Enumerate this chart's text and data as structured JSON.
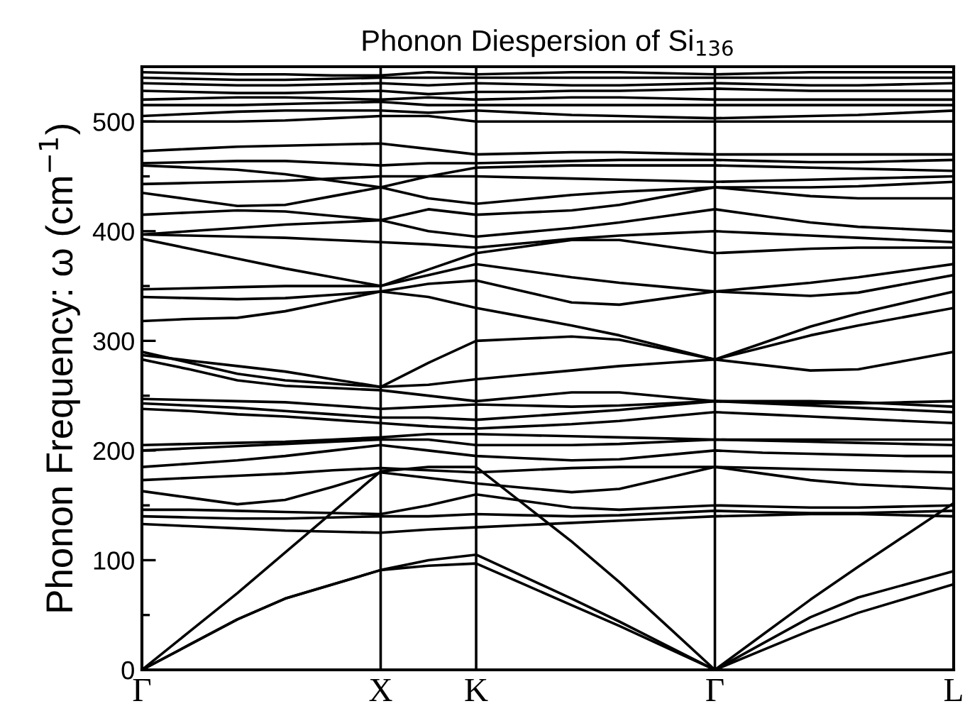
{
  "chart_data": {
    "type": "line",
    "title": "Phonon Diespersion of Si$_{136}$",
    "ylabel": "Phonon Frequency: ω (cm$^{−1}$)",
    "categories": [
      "Γ",
      null,
      null,
      null,
      null,
      "X",
      null,
      "K",
      null,
      null,
      null,
      null,
      "Γ",
      null,
      null,
      null,
      null,
      "L"
    ],
    "ylim": [
      0,
      550
    ],
    "yticks": [
      0,
      {
        "value": 50,
        "label": null
      },
      100,
      {
        "value": 150,
        "label": null
      },
      200,
      {
        "value": 250,
        "label": null
      },
      300,
      {
        "value": 350,
        "label": null
      },
      400,
      {
        "value": 450,
        "label": null
      },
      500
    ],
    "grid": "x",
    "marker": "none",
    "line_style": "solid",
    "series": [
      {
        "color": "#000000",
        "values": [
          0,
          23,
          46,
          65,
          78,
          91,
          95,
          97,
          78,
          59,
          40,
          20,
          0,
          18,
          36,
          52,
          65,
          78
        ]
      },
      {
        "color": "#000000",
        "values": [
          0,
          23,
          46,
          65,
          78,
          91,
          100,
          105,
          85,
          65,
          44,
          22,
          0,
          24,
          48,
          66,
          78,
          90
        ]
      },
      {
        "color": "#000000",
        "values": [
          0,
          35,
          70,
          107,
          144,
          181,
          185,
          185,
          151,
          117,
          80,
          40,
          0,
          32,
          64,
          94,
          123,
          152
        ]
      },
      {
        "color": "#000000",
        "values": [
          133,
          131,
          129,
          127,
          126,
          125,
          128,
          130,
          132,
          134,
          136,
          138,
          140,
          141,
          142,
          142,
          141,
          140
        ]
      },
      {
        "color": "#000000",
        "values": [
          140,
          139,
          138,
          138,
          139,
          140,
          140,
          142,
          141,
          140,
          141,
          143,
          145,
          144,
          143,
          143,
          144,
          145
        ]
      },
      {
        "color": "#000000",
        "values": [
          146,
          146,
          145,
          144,
          143,
          142,
          150,
          160,
          154,
          148,
          146,
          148,
          150,
          149,
          148,
          148,
          149,
          150
        ]
      },
      {
        "color": "#000000",
        "values": [
          163,
          157,
          151,
          155,
          167,
          180,
          175,
          170,
          166,
          162,
          165,
          175,
          185,
          179,
          173,
          169,
          167,
          165
        ]
      },
      {
        "color": "#000000",
        "values": [
          173,
          175,
          177,
          179,
          182,
          184,
          182,
          180,
          182,
          184,
          185,
          185,
          185,
          184,
          183,
          182,
          181,
          180
        ]
      },
      {
        "color": "#000000",
        "values": [
          185,
          188,
          191,
          195,
          200,
          205,
          200,
          195,
          193,
          191,
          192,
          196,
          200,
          198,
          197,
          196,
          195,
          195
        ]
      },
      {
        "color": "#000000",
        "values": [
          200,
          202,
          204,
          206,
          208,
          210,
          210,
          205,
          205,
          205,
          206,
          208,
          210,
          209,
          208,
          207,
          206,
          205
        ]
      },
      {
        "color": "#000000",
        "values": [
          205,
          206,
          207,
          208,
          210,
          212,
          215,
          215,
          214,
          213,
          212,
          211,
          210,
          210,
          210,
          210,
          210,
          210
        ]
      },
      {
        "color": "#000000",
        "values": [
          238,
          236,
          233,
          231,
          228,
          225,
          222,
          220,
          222,
          224,
          227,
          231,
          235,
          233,
          231,
          229,
          227,
          225
        ]
      },
      {
        "color": "#000000",
        "values": [
          243,
          241,
          239,
          236,
          233,
          230,
          230,
          228,
          231,
          234,
          237,
          241,
          245,
          243,
          241,
          239,
          237,
          235
        ]
      },
      {
        "color": "#000000",
        "values": [
          247,
          246,
          245,
          244,
          241,
          238,
          240,
          242,
          241,
          240,
          241,
          243,
          245,
          245,
          245,
          244,
          242,
          240
        ]
      },
      {
        "color": "#000000",
        "values": [
          283,
          274,
          264,
          259,
          257,
          255,
          250,
          245,
          249,
          253,
          253,
          249,
          245,
          244,
          243,
          243,
          244,
          245
        ]
      },
      {
        "color": "#000000",
        "values": [
          287,
          282,
          277,
          272,
          265,
          258,
          260,
          265,
          269,
          273,
          277,
          280,
          283,
          278,
          273,
          274,
          282,
          290
        ]
      },
      {
        "color": "#000000",
        "values": [
          290,
          280,
          270,
          264,
          261,
          258,
          280,
          300,
          302,
          304,
          301,
          292,
          283,
          294,
          305,
          314,
          322,
          330
        ]
      },
      {
        "color": "#000000",
        "values": [
          318,
          320,
          321,
          327,
          336,
          345,
          340,
          330,
          322,
          314,
          305,
          294,
          283,
          298,
          313,
          325,
          335,
          345
        ]
      },
      {
        "color": "#000000",
        "values": [
          340,
          339,
          338,
          339,
          342,
          345,
          352,
          355,
          345,
          335,
          333,
          339,
          345,
          343,
          341,
          344,
          352,
          360
        ]
      },
      {
        "color": "#000000",
        "values": [
          347,
          348,
          349,
          350,
          350,
          350,
          360,
          370,
          364,
          358,
          353,
          349,
          345,
          349,
          353,
          358,
          364,
          370
        ]
      },
      {
        "color": "#000000",
        "values": [
          393,
          384,
          375,
          366,
          358,
          350,
          365,
          380,
          386,
          392,
          392,
          386,
          380,
          382,
          384,
          385,
          385,
          385
        ]
      },
      {
        "color": "#000000",
        "values": [
          397,
          396,
          395,
          394,
          392,
          390,
          388,
          385,
          389,
          393,
          396,
          398,
          400,
          398,
          396,
          394,
          392,
          390
        ]
      },
      {
        "color": "#000000",
        "values": [
          397,
          400,
          403,
          406,
          408,
          410,
          400,
          395,
          399,
          403,
          408,
          414,
          420,
          414,
          408,
          404,
          402,
          400
        ]
      },
      {
        "color": "#000000",
        "values": [
          415,
          417,
          419,
          418,
          414,
          410,
          420,
          415,
          417,
          419,
          424,
          432,
          440,
          436,
          432,
          430,
          430,
          430
        ]
      },
      {
        "color": "#000000",
        "values": [
          435,
          429,
          423,
          424,
          432,
          440,
          430,
          425,
          429,
          433,
          436,
          438,
          440,
          440,
          440,
          441,
          443,
          445
        ]
      },
      {
        "color": "#000000",
        "values": [
          443,
          444,
          445,
          446,
          448,
          450,
          450,
          450,
          449,
          448,
          447,
          446,
          445,
          446,
          447,
          448,
          449,
          450
        ]
      },
      {
        "color": "#000000",
        "values": [
          460,
          458,
          456,
          452,
          446,
          440,
          450,
          458,
          459,
          460,
          460,
          460,
          460,
          459,
          458,
          457,
          456,
          455
        ]
      },
      {
        "color": "#000000",
        "values": [
          462,
          463,
          464,
          464,
          462,
          460,
          462,
          462,
          463,
          464,
          465,
          465,
          465,
          464,
          463,
          463,
          464,
          465
        ]
      },
      {
        "color": "#000000",
        "values": [
          473,
          475,
          477,
          478,
          479,
          480,
          475,
          470,
          471,
          472,
          472,
          471,
          470,
          470,
          470,
          470,
          470,
          470
        ]
      },
      {
        "color": "#000000",
        "values": [
          500,
          500,
          500,
          501,
          503,
          505,
          505,
          500,
          500,
          500,
          500,
          500,
          500,
          500,
          500,
          500,
          500,
          500
        ]
      },
      {
        "color": "#000000",
        "values": [
          505,
          507,
          509,
          510,
          510,
          510,
          508,
          510,
          508,
          506,
          505,
          504,
          503,
          504,
          505,
          506,
          508,
          510
        ]
      },
      {
        "color": "#000000",
        "values": [
          515,
          515,
          515,
          516,
          517,
          518,
          515,
          515,
          515,
          515,
          515,
          515,
          515,
          515,
          515,
          515,
          515,
          515
        ]
      },
      {
        "color": "#000000",
        "values": [
          520,
          521,
          522,
          522,
          521,
          520,
          522,
          520,
          521,
          522,
          522,
          521,
          520,
          520,
          520,
          520,
          520,
          520
        ]
      },
      {
        "color": "#000000",
        "values": [
          528,
          527,
          526,
          526,
          527,
          528,
          525,
          527,
          527,
          528,
          528,
          529,
          530,
          529,
          528,
          528,
          528,
          528
        ]
      },
      {
        "color": "#000000",
        "values": [
          535,
          534,
          533,
          533,
          534,
          535,
          533,
          535,
          534,
          533,
          533,
          534,
          535,
          534,
          533,
          533,
          534,
          535
        ]
      },
      {
        "color": "#000000",
        "values": [
          540,
          539,
          538,
          538,
          539,
          540,
          540,
          540,
          540,
          540,
          540,
          540,
          540,
          540,
          540,
          540,
          540,
          540
        ]
      },
      {
        "color": "#000000",
        "values": [
          545,
          544,
          543,
          543,
          542,
          542,
          545,
          543,
          544,
          545,
          545,
          544,
          543,
          544,
          545,
          545,
          545,
          545
        ]
      }
    ]
  }
}
